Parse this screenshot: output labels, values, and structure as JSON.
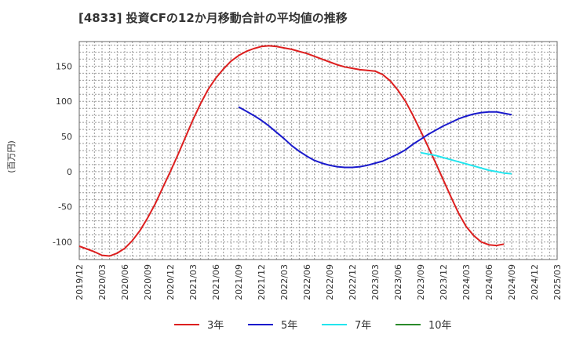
{
  "chart_data": {
    "type": "line",
    "title": "[4833]  投資CFの12か月移動合計の平均値の推移",
    "ylabel": "(百万円)",
    "xlabel": "",
    "ylim": [
      -125,
      185
    ],
    "yticks": [
      -100,
      -50,
      0,
      50,
      100,
      150
    ],
    "xlim": [
      "2019-12",
      "2025-03"
    ],
    "xticks": [
      "2019/12",
      "2020/03",
      "2020/06",
      "2020/09",
      "2020/12",
      "2021/03",
      "2021/06",
      "2021/09",
      "2021/12",
      "2022/03",
      "2022/06",
      "2022/09",
      "2022/12",
      "2023/03",
      "2023/06",
      "2023/09",
      "2023/12",
      "2024/03",
      "2024/06",
      "2024/09",
      "2024/12",
      "2025/03"
    ],
    "grid": true,
    "legend": "bottom",
    "series": [
      {
        "name": "3年",
        "color": "#dd1f1f",
        "points": [
          [
            "2019-12",
            -106
          ],
          [
            "2020-01",
            -110
          ],
          [
            "2020-02",
            -114
          ],
          [
            "2020-03",
            -119
          ],
          [
            "2020-04",
            -120
          ],
          [
            "2020-05",
            -116
          ],
          [
            "2020-06",
            -109
          ],
          [
            "2020-07",
            -98
          ],
          [
            "2020-08",
            -84
          ],
          [
            "2020-09",
            -66
          ],
          [
            "2020-10",
            -46
          ],
          [
            "2020-11",
            -23
          ],
          [
            "2020-12",
            0
          ],
          [
            "2021-01",
            24
          ],
          [
            "2021-02",
            49
          ],
          [
            "2021-03",
            74
          ],
          [
            "2021-04",
            97
          ],
          [
            "2021-05",
            117
          ],
          [
            "2021-06",
            133
          ],
          [
            "2021-07",
            146
          ],
          [
            "2021-08",
            157
          ],
          [
            "2021-09",
            165
          ],
          [
            "2021-10",
            171
          ],
          [
            "2021-11",
            175
          ],
          [
            "2021-12",
            178
          ],
          [
            "2022-01",
            179
          ],
          [
            "2022-02",
            178
          ],
          [
            "2022-03",
            176
          ],
          [
            "2022-04",
            174
          ],
          [
            "2022-05",
            171
          ],
          [
            "2022-06",
            168
          ],
          [
            "2022-07",
            164
          ],
          [
            "2022-08",
            160
          ],
          [
            "2022-09",
            156
          ],
          [
            "2022-10",
            152
          ],
          [
            "2022-11",
            149
          ],
          [
            "2022-12",
            147
          ],
          [
            "2023-01",
            145
          ],
          [
            "2023-02",
            144
          ],
          [
            "2023-03",
            143
          ],
          [
            "2023-04",
            138
          ],
          [
            "2023-05",
            129
          ],
          [
            "2023-06",
            116
          ],
          [
            "2023-07",
            100
          ],
          [
            "2023-08",
            80
          ],
          [
            "2023-09",
            58
          ],
          [
            "2023-10",
            35
          ],
          [
            "2023-11",
            12
          ],
          [
            "2023-12",
            -12
          ],
          [
            "2024-01",
            -36
          ],
          [
            "2024-02",
            -59
          ],
          [
            "2024-03",
            -78
          ],
          [
            "2024-04",
            -91
          ],
          [
            "2024-05",
            -100
          ],
          [
            "2024-06",
            -104
          ],
          [
            "2024-07",
            -105
          ],
          [
            "2024-08",
            -103
          ]
        ]
      },
      {
        "name": "5年",
        "color": "#1a1acc",
        "points": [
          [
            "2021-09",
            92
          ],
          [
            "2021-10",
            86
          ],
          [
            "2021-11",
            80
          ],
          [
            "2021-12",
            73
          ],
          [
            "2022-01",
            65
          ],
          [
            "2022-02",
            56
          ],
          [
            "2022-03",
            47
          ],
          [
            "2022-04",
            37
          ],
          [
            "2022-05",
            29
          ],
          [
            "2022-06",
            22
          ],
          [
            "2022-07",
            16
          ],
          [
            "2022-08",
            12
          ],
          [
            "2022-09",
            9
          ],
          [
            "2022-10",
            7
          ],
          [
            "2022-11",
            6
          ],
          [
            "2022-12",
            6
          ],
          [
            "2023-01",
            7
          ],
          [
            "2023-02",
            9
          ],
          [
            "2023-03",
            12
          ],
          [
            "2023-04",
            15
          ],
          [
            "2023-05",
            20
          ],
          [
            "2023-06",
            25
          ],
          [
            "2023-07",
            31
          ],
          [
            "2023-08",
            39
          ],
          [
            "2023-09",
            46
          ],
          [
            "2023-10",
            53
          ],
          [
            "2023-11",
            59
          ],
          [
            "2023-12",
            65
          ],
          [
            "2024-01",
            70
          ],
          [
            "2024-02",
            75
          ],
          [
            "2024-03",
            79
          ],
          [
            "2024-04",
            82
          ],
          [
            "2024-05",
            84
          ],
          [
            "2024-06",
            85
          ],
          [
            "2024-07",
            85
          ],
          [
            "2024-08",
            83
          ],
          [
            "2024-09",
            81
          ]
        ]
      },
      {
        "name": "7年",
        "color": "#22e5ee",
        "points": [
          [
            "2023-09",
            27
          ],
          [
            "2023-10",
            25
          ],
          [
            "2023-11",
            23
          ],
          [
            "2023-12",
            20
          ],
          [
            "2024-01",
            17
          ],
          [
            "2024-02",
            14
          ],
          [
            "2024-03",
            11
          ],
          [
            "2024-04",
            8
          ],
          [
            "2024-05",
            5
          ],
          [
            "2024-06",
            2
          ],
          [
            "2024-07",
            0
          ],
          [
            "2024-08",
            -2
          ],
          [
            "2024-09",
            -3
          ]
        ]
      },
      {
        "name": "10年",
        "color": "#2a8a2a",
        "points": []
      }
    ]
  }
}
